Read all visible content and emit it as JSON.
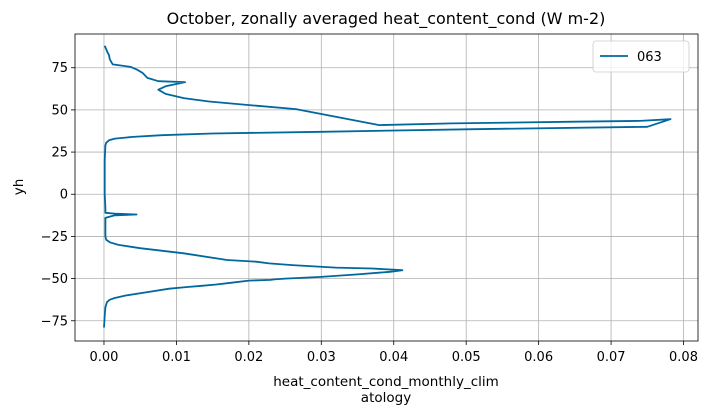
{
  "chart_data": {
    "type": "line",
    "title": "October, zonally averaged heat_content_cond (W m-2)",
    "xlabel_lines": [
      "heat_content_cond_monthly_clim",
      "atology"
    ],
    "ylabel": "yh",
    "xlim": [
      -0.004,
      0.082
    ],
    "ylim": [
      -87,
      95
    ],
    "xticks": [
      0.0,
      0.01,
      0.02,
      0.03,
      0.04,
      0.05,
      0.06,
      0.07,
      0.08
    ],
    "xtick_labels": [
      "0.00",
      "0.01",
      "0.02",
      "0.03",
      "0.04",
      "0.05",
      "0.06",
      "0.07",
      "0.08"
    ],
    "yticks": [
      -75,
      -50,
      -25,
      0,
      25,
      50,
      75
    ],
    "ytick_labels": [
      "−75",
      "−50",
      "−25",
      "0",
      "25",
      "50",
      "75"
    ],
    "grid": true,
    "legend_position": "top-right",
    "series": [
      {
        "name": "063",
        "color": "#00689e",
        "x": [
          0.0,
          0.0001,
          0.0002,
          0.0004,
          0.0008,
          0.0015,
          0.003,
          0.006,
          0.009,
          0.0115,
          0.0135,
          0.0155,
          0.0175,
          0.02,
          0.023,
          0.0235,
          0.025,
          0.03,
          0.035,
          0.0395,
          0.0412,
          0.037,
          0.032,
          0.026,
          0.0228,
          0.021,
          0.017,
          0.011,
          0.005,
          0.002,
          0.0008,
          0.0003,
          0.0002,
          0.0002,
          0.0015,
          0.0045,
          0.0015,
          0.0002,
          0.0002,
          0.0001,
          0.0001,
          0.0002,
          0.0003,
          0.0007,
          0.0015,
          0.004,
          0.008,
          0.015,
          0.03,
          0.05,
          0.075,
          0.0782,
          0.074,
          0.065,
          0.048,
          0.038,
          0.0265,
          0.021,
          0.0145,
          0.011,
          0.0085,
          0.0075,
          0.0085,
          0.0112,
          0.0075,
          0.006,
          0.0053,
          0.0045,
          0.0037,
          0.0012,
          0.0008,
          0.0007,
          0.0005,
          0.0003,
          0.0001
        ],
        "y": [
          -79,
          -72,
          -67,
          -64,
          -62.5,
          -61.5,
          -60,
          -58,
          -56,
          -55,
          -54.3,
          -53.5,
          -52.5,
          -51.2,
          -50.8,
          -50.5,
          -50,
          -49,
          -47.5,
          -46,
          -45,
          -44,
          -43.5,
          -42,
          -41,
          -40,
          -39,
          -35,
          -32,
          -30,
          -28.5,
          -27,
          -25,
          -14,
          -12.5,
          -12,
          -11.5,
          -11,
          -8,
          0,
          20,
          29,
          30.5,
          32,
          33,
          34,
          35,
          36,
          37,
          38.5,
          40,
          44.5,
          43.5,
          43,
          42,
          41,
          50.5,
          52.5,
          55,
          57,
          59.5,
          62,
          64,
          66.5,
          67,
          69,
          72,
          74,
          75.5,
          77,
          80,
          82.5,
          84,
          86,
          88
        ]
      }
    ]
  }
}
